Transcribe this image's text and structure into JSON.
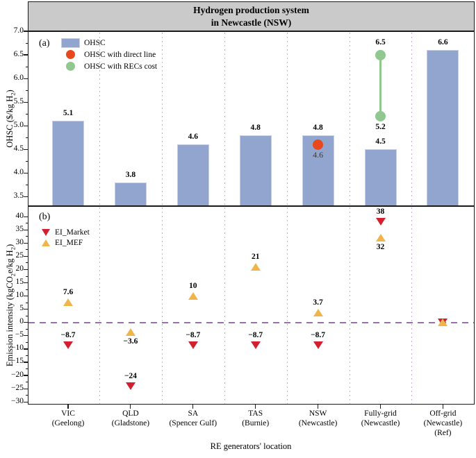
{
  "title": {
    "line1": "Hydrogen production system",
    "line2": "in Newcastle (NSW)"
  },
  "labels": {
    "panel_a_tag": "(a)",
    "panel_b_tag": "(b)",
    "xlabel": "RE generators' location",
    "ylabel_a_parts": [
      "OHSC ($/kg H",
      "2",
      ")"
    ],
    "ylabel_b_parts": [
      "Emission intensity (kgCO",
      "2",
      "e/kg H",
      "2",
      ")"
    ]
  },
  "colors": {
    "bar": "#92a5ce",
    "bar_border": "#c6cfe3",
    "direct": "#e8481c",
    "recs": "#90c890",
    "market": "#d32030",
    "mef": "#efb54a",
    "zero_line": "#9a6fb0",
    "separator": "#c9a9d8",
    "header_bg": "#cacaca",
    "axis": "#1a1a1a",
    "dot_label": "#3a3a3a"
  },
  "x_axis": {
    "categories_lines": [
      [
        "VIC",
        "(Geelong)"
      ],
      [
        "QLD",
        "(Gladstone)"
      ],
      [
        "SA",
        "(Spencer Gulf)"
      ],
      [
        "TAS",
        "(Burnie)"
      ],
      [
        "NSW",
        "(Newcastle)"
      ],
      [
        "Fully-grid",
        "(Newcastle)"
      ],
      [
        "Off-grid",
        "(Newcastle)",
        "(Ref)"
      ]
    ]
  },
  "chart_data": [
    {
      "panel": "a",
      "type": "bar",
      "title": "Hydrogen production system in Newcastle (NSW)",
      "ylabel": "OHSC ($/kg H2)",
      "ylim": [
        3.3,
        7.0
      ],
      "yticks": [
        {
          "v": 3.5,
          "t": "3.5"
        },
        {
          "v": 4.0,
          "t": "4.0"
        },
        {
          "v": 4.5,
          "t": "4.5"
        },
        {
          "v": 5.0,
          "t": "5.0"
        },
        {
          "v": 5.5,
          "t": "5.5"
        },
        {
          "v": 6.0,
          "t": "6.0"
        },
        {
          "v": 6.5,
          "t": "6.5"
        },
        {
          "v": 7.0,
          "t": "7.0"
        }
      ],
      "categories": [
        "VIC (Geelong)",
        "QLD (Gladstone)",
        "SA (Spencer Gulf)",
        "TAS (Burnie)",
        "NSW (Newcastle)",
        "Fully-grid (Newcastle)",
        "Off-grid (Newcastle) (Ref)"
      ],
      "series": [
        {
          "name": "OHSC",
          "type": "bar",
          "color_key": "bar",
          "values": [
            5.1,
            3.8,
            4.6,
            4.8,
            4.8,
            4.5,
            6.6
          ],
          "value_labels": [
            "5.1",
            "3.8",
            "4.6",
            "4.8",
            "4.8",
            "4.5",
            "6.6"
          ]
        },
        {
          "name": "OHSC with direct line",
          "type": "point",
          "marker": "circle",
          "color_key": "direct",
          "points": [
            {
              "category": "NSW (Newcastle)",
              "category_index": 4,
              "value": 4.6,
              "label": "4.6"
            }
          ]
        },
        {
          "name": "OHSC with RECs cost",
          "type": "range",
          "marker": "circle",
          "color_key": "recs",
          "points": [
            {
              "category": "Fully-grid (Newcastle)",
              "category_index": 5,
              "low": 5.2,
              "high": 6.5,
              "low_label": "5.2",
              "high_label": "6.5"
            }
          ]
        }
      ]
    },
    {
      "panel": "b",
      "type": "scatter",
      "ylabel": "Emission intensity (kgCO2e/kg H2)",
      "ylim": [
        -31,
        44
      ],
      "zero_line": 0,
      "yticks": [
        {
          "v": 40,
          "t": "40"
        },
        {
          "v": 35,
          "t": "35"
        },
        {
          "v": 30,
          "t": "30"
        },
        {
          "v": 25,
          "t": "25"
        },
        {
          "v": 20,
          "t": "20"
        },
        {
          "v": 15,
          "t": "15"
        },
        {
          "v": 10,
          "t": "10"
        },
        {
          "v": 5,
          "t": "5"
        },
        {
          "v": 0,
          "t": "0"
        },
        {
          "v": -5,
          "t": "−5"
        },
        {
          "v": -10,
          "t": "−10"
        },
        {
          "v": -15,
          "t": "−15"
        },
        {
          "v": -20,
          "t": "−20"
        },
        {
          "v": -25,
          "t": "−25"
        },
        {
          "v": -30,
          "t": "−30"
        }
      ],
      "categories": [
        "VIC (Geelong)",
        "QLD (Gladstone)",
        "SA (Spencer Gulf)",
        "TAS (Burnie)",
        "NSW (Newcastle)",
        "Fully-grid (Newcastle)",
        "Off-grid (Newcastle) (Ref)"
      ],
      "series": [
        {
          "name": "EI_Market",
          "marker": "triangle-down",
          "color_key": "market",
          "values": [
            -8.7,
            -24,
            -8.7,
            -8.7,
            -8.7,
            38,
            0
          ],
          "value_labels": [
            "−8.7",
            "−24",
            "−8.7",
            "−8.7",
            "−8.7",
            "38",
            ""
          ],
          "label_positions": [
            "above",
            "above",
            "above",
            "above",
            "above",
            "above",
            "none"
          ]
        },
        {
          "name": "EI_MEF",
          "marker": "triangle-up",
          "color_key": "mef",
          "values": [
            7.6,
            -3.6,
            10,
            21,
            3.7,
            32,
            0
          ],
          "value_labels": [
            "7.6",
            "−3.6",
            "10",
            "21",
            "3.7",
            "32",
            ""
          ],
          "label_positions": [
            "above",
            "below",
            "above",
            "above",
            "above",
            "below",
            "none"
          ]
        }
      ]
    }
  ]
}
